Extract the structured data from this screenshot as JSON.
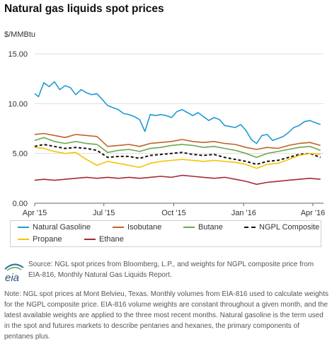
{
  "page": {
    "title": "Natural gas liquids spot prices",
    "source": "Source: NGL spot prices from Bloomberg, L.P., and weights for NGPL composite price from EIA-816, Monthly Natural Gas Liquids Report.",
    "note": "Note: NGL spot prices at Mont Belvieu, Texas. Monthly volumes from EIA-816 used to calculate weights for the NGPL composite price. EIA-816 volume weights are constant throughout a given month, and the latest available weights are applied to the three most recent months. Natural gasoline is the term used in the spot and futures markets to describe pentanes and hexanes, the primary components of pentanes plus.",
    "logo_text": "eia"
  },
  "chart_data": {
    "type": "line",
    "title": "Natural gas liquids spot prices",
    "ylabel": "$/MMBtu",
    "xlabel": "",
    "ylim": [
      0,
      15
    ],
    "yticks": [
      0,
      5,
      10,
      15
    ],
    "ytick_labels": [
      "0.00",
      "5.00",
      "10.00",
      "15.00"
    ],
    "x_start": "2015-04-01",
    "x_end": "2016-04-15",
    "xticks": [
      {
        "date": "2015-04-01",
        "label": "Apr '15"
      },
      {
        "date": "2015-07-01",
        "label": "Jul '15"
      },
      {
        "date": "2015-10-01",
        "label": "Oct '15"
      },
      {
        "date": "2016-01-01",
        "label": "Jan '16"
      },
      {
        "date": "2016-04-01",
        "label": "Apr '16"
      }
    ],
    "grid": "horizontal",
    "legend_position": "bottom",
    "series": [
      {
        "name": "Natural Gasoline",
        "color": "#1f9ad6",
        "dashed": false,
        "points": [
          [
            "2015-04-01",
            11.0
          ],
          [
            "2015-04-06",
            10.7
          ],
          [
            "2015-04-13",
            12.1
          ],
          [
            "2015-04-20",
            11.7
          ],
          [
            "2015-04-27",
            12.2
          ],
          [
            "2015-05-04",
            11.4
          ],
          [
            "2015-05-11",
            11.8
          ],
          [
            "2015-05-18",
            11.6
          ],
          [
            "2015-05-25",
            10.9
          ],
          [
            "2015-06-01",
            11.4
          ],
          [
            "2015-06-08",
            11.1
          ],
          [
            "2015-06-15",
            10.9
          ],
          [
            "2015-06-22",
            11.0
          ],
          [
            "2015-06-29",
            10.4
          ],
          [
            "2015-07-06",
            9.8
          ],
          [
            "2015-07-13",
            9.6
          ],
          [
            "2015-07-20",
            9.4
          ],
          [
            "2015-07-27",
            9.0
          ],
          [
            "2015-08-03",
            8.9
          ],
          [
            "2015-08-10",
            8.7
          ],
          [
            "2015-08-17",
            8.4
          ],
          [
            "2015-08-24",
            7.2
          ],
          [
            "2015-08-31",
            8.9
          ],
          [
            "2015-09-07",
            8.8
          ],
          [
            "2015-09-14",
            8.9
          ],
          [
            "2015-09-21",
            8.8
          ],
          [
            "2015-09-28",
            8.6
          ],
          [
            "2015-10-05",
            9.2
          ],
          [
            "2015-10-12",
            9.4
          ],
          [
            "2015-10-19",
            9.1
          ],
          [
            "2015-10-26",
            8.8
          ],
          [
            "2015-11-02",
            9.1
          ],
          [
            "2015-11-09",
            8.7
          ],
          [
            "2015-11-16",
            8.3
          ],
          [
            "2015-11-23",
            8.6
          ],
          [
            "2015-11-30",
            8.4
          ],
          [
            "2015-12-07",
            7.8
          ],
          [
            "2015-12-14",
            7.7
          ],
          [
            "2015-12-21",
            7.6
          ],
          [
            "2015-12-28",
            7.9
          ],
          [
            "2016-01-04",
            7.3
          ],
          [
            "2016-01-11",
            6.4
          ],
          [
            "2016-01-18",
            6.0
          ],
          [
            "2016-01-25",
            6.8
          ],
          [
            "2016-02-01",
            6.9
          ],
          [
            "2016-02-08",
            6.3
          ],
          [
            "2016-02-15",
            6.5
          ],
          [
            "2016-02-22",
            6.7
          ],
          [
            "2016-02-29",
            7.1
          ],
          [
            "2016-03-07",
            7.6
          ],
          [
            "2016-03-14",
            7.8
          ],
          [
            "2016-03-21",
            8.2
          ],
          [
            "2016-03-28",
            8.3
          ],
          [
            "2016-04-04",
            8.1
          ],
          [
            "2016-04-11",
            7.9
          ]
        ]
      },
      {
        "name": "Isobutane",
        "color": "#c0632a",
        "dashed": false,
        "points": [
          [
            "2015-04-01",
            6.9
          ],
          [
            "2015-04-13",
            7.0
          ],
          [
            "2015-04-27",
            6.8
          ],
          [
            "2015-05-11",
            6.6
          ],
          [
            "2015-05-25",
            6.9
          ],
          [
            "2015-06-08",
            6.8
          ],
          [
            "2015-06-22",
            6.7
          ],
          [
            "2015-07-06",
            5.7
          ],
          [
            "2015-07-20",
            5.8
          ],
          [
            "2015-08-03",
            5.9
          ],
          [
            "2015-08-17",
            5.7
          ],
          [
            "2015-08-31",
            6.0
          ],
          [
            "2015-09-14",
            6.1
          ],
          [
            "2015-09-28",
            6.2
          ],
          [
            "2015-10-12",
            6.4
          ],
          [
            "2015-10-26",
            6.2
          ],
          [
            "2015-11-09",
            6.1
          ],
          [
            "2015-11-23",
            6.2
          ],
          [
            "2015-12-07",
            6.0
          ],
          [
            "2015-12-21",
            5.9
          ],
          [
            "2016-01-04",
            5.6
          ],
          [
            "2016-01-18",
            5.4
          ],
          [
            "2016-02-01",
            5.6
          ],
          [
            "2016-02-15",
            5.5
          ],
          [
            "2016-02-29",
            5.8
          ],
          [
            "2016-03-14",
            6.0
          ],
          [
            "2016-03-28",
            6.1
          ],
          [
            "2016-04-11",
            5.8
          ]
        ]
      },
      {
        "name": "Butane",
        "color": "#6aa84f",
        "dashed": false,
        "points": [
          [
            "2015-04-01",
            6.3
          ],
          [
            "2015-04-13",
            6.6
          ],
          [
            "2015-04-27",
            6.2
          ],
          [
            "2015-05-11",
            6.0
          ],
          [
            "2015-05-25",
            6.2
          ],
          [
            "2015-06-08",
            6.0
          ],
          [
            "2015-06-22",
            5.9
          ],
          [
            "2015-07-06",
            5.1
          ],
          [
            "2015-07-20",
            5.3
          ],
          [
            "2015-08-03",
            5.4
          ],
          [
            "2015-08-17",
            5.2
          ],
          [
            "2015-08-31",
            5.5
          ],
          [
            "2015-09-14",
            5.6
          ],
          [
            "2015-09-28",
            5.8
          ],
          [
            "2015-10-12",
            5.9
          ],
          [
            "2015-10-26",
            5.8
          ],
          [
            "2015-11-09",
            5.6
          ],
          [
            "2015-11-23",
            5.7
          ],
          [
            "2015-12-07",
            5.5
          ],
          [
            "2015-12-21",
            5.3
          ],
          [
            "2016-01-04",
            5.0
          ],
          [
            "2016-01-18",
            4.6
          ],
          [
            "2016-02-01",
            5.0
          ],
          [
            "2016-02-15",
            5.2
          ],
          [
            "2016-02-29",
            5.4
          ],
          [
            "2016-03-14",
            5.6
          ],
          [
            "2016-03-28",
            5.7
          ],
          [
            "2016-04-11",
            5.3
          ]
        ]
      },
      {
        "name": "NGPL Composite",
        "color": "#111111",
        "dashed": true,
        "points": [
          [
            "2015-04-01",
            5.7
          ],
          [
            "2015-04-13",
            5.9
          ],
          [
            "2015-04-27",
            5.7
          ],
          [
            "2015-05-11",
            5.5
          ],
          [
            "2015-05-25",
            5.6
          ],
          [
            "2015-06-08",
            5.5
          ],
          [
            "2015-06-22",
            5.3
          ],
          [
            "2015-07-06",
            4.6
          ],
          [
            "2015-07-20",
            4.7
          ],
          [
            "2015-08-03",
            4.7
          ],
          [
            "2015-08-17",
            4.5
          ],
          [
            "2015-08-31",
            4.8
          ],
          [
            "2015-09-14",
            4.9
          ],
          [
            "2015-09-28",
            5.0
          ],
          [
            "2015-10-12",
            5.1
          ],
          [
            "2015-10-26",
            4.9
          ],
          [
            "2015-11-09",
            4.8
          ],
          [
            "2015-11-23",
            4.9
          ],
          [
            "2015-12-07",
            4.6
          ],
          [
            "2015-12-21",
            4.4
          ],
          [
            "2016-01-04",
            4.2
          ],
          [
            "2016-01-18",
            3.9
          ],
          [
            "2016-02-01",
            4.2
          ],
          [
            "2016-02-15",
            4.3
          ],
          [
            "2016-02-29",
            4.6
          ],
          [
            "2016-03-14",
            4.9
          ],
          [
            "2016-03-28",
            5.0
          ],
          [
            "2016-04-11",
            4.6
          ]
        ]
      },
      {
        "name": "Propane",
        "color": "#f5c400",
        "dashed": false,
        "points": [
          [
            "2015-04-01",
            5.6
          ],
          [
            "2015-04-13",
            5.5
          ],
          [
            "2015-04-27",
            5.2
          ],
          [
            "2015-05-11",
            5.0
          ],
          [
            "2015-05-25",
            5.1
          ],
          [
            "2015-06-08",
            4.4
          ],
          [
            "2015-06-22",
            3.8
          ],
          [
            "2015-07-06",
            4.2
          ],
          [
            "2015-07-20",
            4.0
          ],
          [
            "2015-08-03",
            3.8
          ],
          [
            "2015-08-17",
            3.6
          ],
          [
            "2015-08-31",
            4.0
          ],
          [
            "2015-09-14",
            4.2
          ],
          [
            "2015-09-28",
            4.3
          ],
          [
            "2015-10-12",
            4.4
          ],
          [
            "2015-10-26",
            4.3
          ],
          [
            "2015-11-09",
            4.2
          ],
          [
            "2015-11-23",
            4.3
          ],
          [
            "2015-12-07",
            4.2
          ],
          [
            "2015-12-21",
            4.1
          ],
          [
            "2016-01-04",
            3.9
          ],
          [
            "2016-01-18",
            3.5
          ],
          [
            "2016-02-01",
            3.9
          ],
          [
            "2016-02-15",
            4.0
          ],
          [
            "2016-02-29",
            4.4
          ],
          [
            "2016-03-14",
            4.8
          ],
          [
            "2016-03-28",
            5.0
          ],
          [
            "2016-04-11",
            4.9
          ]
        ]
      },
      {
        "name": "Ethane",
        "color": "#a52a3a",
        "dashed": false,
        "points": [
          [
            "2015-04-01",
            2.3
          ],
          [
            "2015-04-13",
            2.4
          ],
          [
            "2015-04-27",
            2.3
          ],
          [
            "2015-05-11",
            2.4
          ],
          [
            "2015-05-25",
            2.5
          ],
          [
            "2015-06-08",
            2.6
          ],
          [
            "2015-06-22",
            2.5
          ],
          [
            "2015-07-06",
            2.6
          ],
          [
            "2015-07-20",
            2.5
          ],
          [
            "2015-08-03",
            2.6
          ],
          [
            "2015-08-17",
            2.5
          ],
          [
            "2015-08-31",
            2.6
          ],
          [
            "2015-09-14",
            2.7
          ],
          [
            "2015-09-28",
            2.6
          ],
          [
            "2015-10-12",
            2.8
          ],
          [
            "2015-10-26",
            2.7
          ],
          [
            "2015-11-09",
            2.6
          ],
          [
            "2015-11-23",
            2.5
          ],
          [
            "2015-12-07",
            2.6
          ],
          [
            "2015-12-21",
            2.4
          ],
          [
            "2016-01-04",
            2.2
          ],
          [
            "2016-01-18",
            1.9
          ],
          [
            "2016-02-01",
            2.1
          ],
          [
            "2016-02-15",
            2.2
          ],
          [
            "2016-02-29",
            2.3
          ],
          [
            "2016-03-14",
            2.4
          ],
          [
            "2016-03-28",
            2.5
          ],
          [
            "2016-04-11",
            2.4
          ]
        ]
      }
    ]
  }
}
